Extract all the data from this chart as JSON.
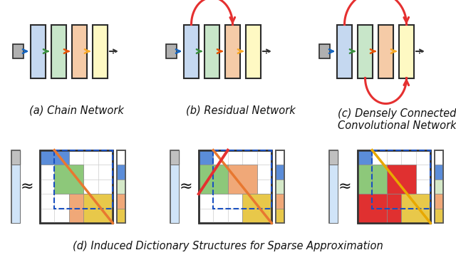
{
  "bg_color": "#ffffff",
  "box_colors": [
    "#c5d8f0",
    "#c8e6c9",
    "#f5cba7",
    "#fef9c3"
  ],
  "box_edge_color": "#2c2c2c",
  "input_box_color": "#b0b0b0",
  "arrow_colors": [
    "#1565c0",
    "#388e3c",
    "#e65100",
    "#f9a825"
  ],
  "red_color": "#e53030",
  "label_fontsize": 10.5,
  "labels": [
    "(a) Chain Network",
    "(b) Residual Network",
    "(c) Densely Connected\nConvolutional Network"
  ],
  "bottom_label": "(d) Induced Dictionary Structures for Sparse Approximation",
  "mat_blue": "#5b8dd9",
  "mat_green": "#8dc87a",
  "mat_orange": "#f0a878",
  "mat_yellow": "#e8c84a",
  "mat_red": "#e03030",
  "mat_orange_diag": "#e87830",
  "mat_gold_diag": "#e8a800",
  "mat_blue_border": "#1a50c0"
}
